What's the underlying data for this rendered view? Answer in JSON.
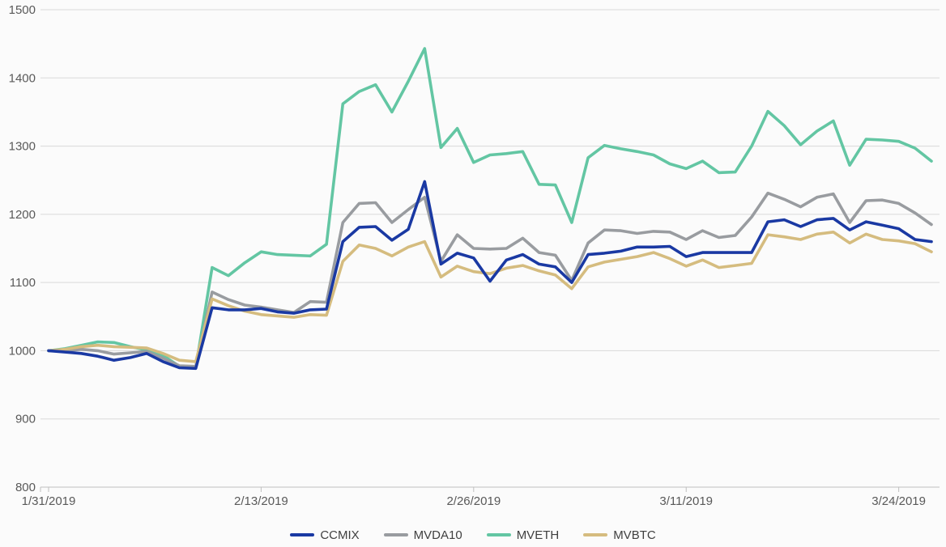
{
  "chart_data": {
    "type": "line",
    "title": "",
    "xlabel": "",
    "ylabel": "",
    "ylim": [
      800,
      1500
    ],
    "y_ticks": [
      800,
      900,
      1000,
      1100,
      1200,
      1300,
      1400,
      1500
    ],
    "grid": true,
    "legend_position": "bottom",
    "x_point_count": 55,
    "x_tick_labels": [
      {
        "index": 0,
        "label": "1/31/2019"
      },
      {
        "index": 13,
        "label": "2/13/2019"
      },
      {
        "index": 26,
        "label": "2/26/2019"
      },
      {
        "index": 39,
        "label": "3/11/2019"
      },
      {
        "index": 52,
        "label": "3/24/2019"
      }
    ],
    "series": [
      {
        "name": "CCMIX",
        "color": "#1A39A3",
        "values": [
          1000,
          998,
          996,
          992,
          986,
          990,
          996,
          984,
          975,
          974,
          1063,
          1060,
          1060,
          1062,
          1057,
          1055,
          1060,
          1061,
          1160,
          1181,
          1182,
          1162,
          1178,
          1248,
          1127,
          1143,
          1136,
          1102,
          1133,
          1141,
          1127,
          1123,
          1100,
          1141,
          1143,
          1146,
          1152,
          1152,
          1153,
          1138,
          1144,
          1144,
          1144,
          1144,
          1189,
          1192,
          1182,
          1192,
          1194,
          1177,
          1189,
          1184,
          1179,
          1163,
          1160
        ]
      },
      {
        "name": "MVDA10",
        "color": "#999CA0",
        "values": [
          1000,
          1000,
          1002,
          1000,
          995,
          997,
          999,
          989,
          978,
          977,
          1086,
          1075,
          1067,
          1064,
          1060,
          1056,
          1072,
          1071,
          1188,
          1216,
          1217,
          1188,
          1207,
          1225,
          1131,
          1170,
          1150,
          1149,
          1150,
          1165,
          1144,
          1140,
          1103,
          1158,
          1177,
          1176,
          1172,
          1175,
          1174,
          1163,
          1176,
          1166,
          1169,
          1196,
          1231,
          1222,
          1211,
          1225,
          1230,
          1188,
          1220,
          1221,
          1216,
          1202,
          1185
        ]
      },
      {
        "name": "MVETH",
        "color": "#63C6A3",
        "values": [
          1000,
          1003,
          1008,
          1013,
          1012,
          1006,
          1001,
          993,
          977,
          975,
          1122,
          1110,
          1129,
          1145,
          1141,
          1140,
          1139,
          1156,
          1362,
          1380,
          1390,
          1350,
          1395,
          1443,
          1298,
          1326,
          1276,
          1287,
          1289,
          1292,
          1244,
          1243,
          1188,
          1283,
          1301,
          1296,
          1292,
          1287,
          1274,
          1267,
          1278,
          1261,
          1262,
          1300,
          1351,
          1330,
          1302,
          1322,
          1337,
          1272,
          1310,
          1309,
          1307,
          1297,
          1278
        ]
      },
      {
        "name": "MVBTC",
        "color": "#D5BC7F",
        "values": [
          1000,
          1002,
          1006,
          1008,
          1006,
          1005,
          1004,
          996,
          986,
          984,
          1076,
          1066,
          1058,
          1053,
          1051,
          1049,
          1053,
          1052,
          1131,
          1155,
          1150,
          1139,
          1152,
          1160,
          1108,
          1124,
          1116,
          1113,
          1121,
          1125,
          1117,
          1111,
          1091,
          1123,
          1130,
          1134,
          1138,
          1144,
          1135,
          1124,
          1133,
          1122,
          1125,
          1128,
          1170,
          1167,
          1163,
          1171,
          1174,
          1158,
          1171,
          1163,
          1161,
          1157,
          1145
        ]
      }
    ],
    "colors": {
      "background": "#FBFBFB",
      "gridline": "#D9D9D9",
      "axis_line": "#BFBFBF",
      "axis_text": "#595959",
      "legend_text": "#404040"
    }
  },
  "legend": {
    "items": [
      "CCMIX",
      "MVDA10",
      "MVETH",
      "MVBTC"
    ]
  }
}
